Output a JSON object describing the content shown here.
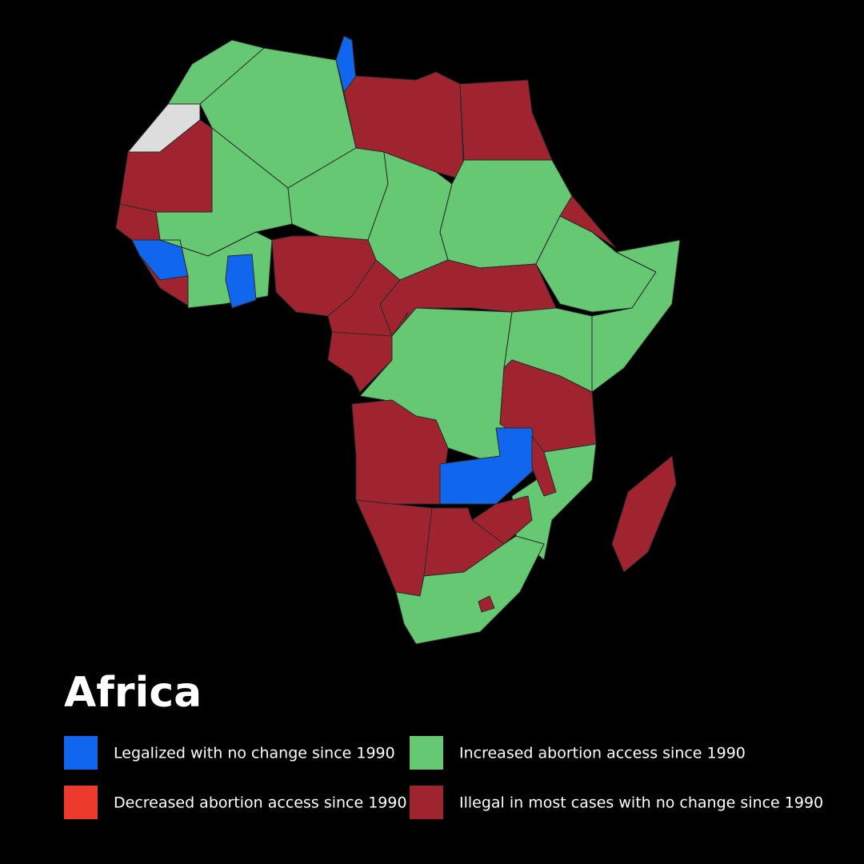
{
  "title": "Africa",
  "legend": [
    {
      "label": "Legalized with no change since 1990",
      "color": "#1166ee"
    },
    {
      "label": "Increased abortion access since 1990",
      "color": "#66c872"
    },
    {
      "label": "Decreased abortion access since 1990",
      "color": "#ee3a2c"
    },
    {
      "label": "Illegal in most cases with no change since 1990",
      "color": "#a02430"
    }
  ]
}
